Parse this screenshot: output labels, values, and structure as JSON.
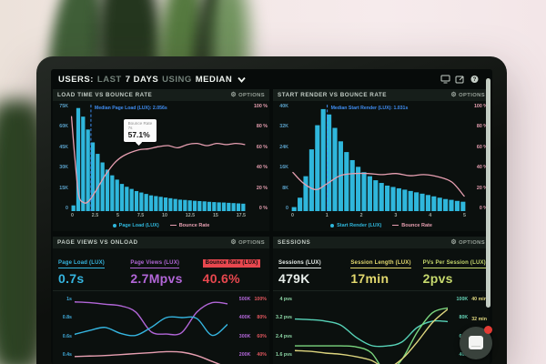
{
  "topbar": {
    "users": "USERS:",
    "last": "LAST",
    "days": "7 DAYS",
    "using": "USING",
    "median": "MEDIAN"
  },
  "labels": {
    "options": "OPTIONS"
  },
  "icons": {
    "gear": "⚙",
    "monitor": "monitor-icon",
    "share": "share-icon",
    "help": "help-icon",
    "chevron": "chevron-down-icon"
  },
  "colors": {
    "cyan": "#2fb7dc",
    "pink": "#e79fb1",
    "blue": "#3f8cf0",
    "purple": "#b266d8",
    "red": "#e8474e",
    "yellow": "#e3d96e",
    "lime": "#c6d96d",
    "teal": "#57d3b8",
    "green": "#7bd67f",
    "white": "#e8eeea"
  },
  "panels": {
    "load_time": {
      "title": "LOAD TIME VS BOUNCE RATE",
      "y_left": [
        "75K",
        "60K",
        "45K",
        "30K",
        "15K",
        "0"
      ],
      "y_right": [
        "100 %",
        "80 %",
        "60 %",
        "40 %",
        "20 %",
        "0 %"
      ],
      "x_ticks": [
        "0",
        "2.5",
        "5",
        "7.5",
        "10",
        "12.5",
        "15",
        "17.5"
      ],
      "legend": [
        "Page Load (LUX)",
        "Bounce Rate"
      ],
      "tooltip": {
        "title": "Bounce Rate",
        "x": "7s",
        "value": "57.1%"
      }
    },
    "start_render": {
      "title": "START RENDER VS BOUNCE RATE",
      "y_left": [
        "40K",
        "32K",
        "24K",
        "16K",
        "8K",
        "0"
      ],
      "y_right": [
        "100 %",
        "80 %",
        "60 %",
        "40 %",
        "20 %",
        "0 %"
      ],
      "x_ticks": [
        "0",
        "1",
        "2",
        "3",
        "4",
        "5"
      ],
      "legend": [
        "Start Render (LUX)",
        "Bounce Rate"
      ]
    },
    "page_views": {
      "title": "PAGE VIEWS VS ONLOAD",
      "metrics": [
        {
          "label": "Page Load (LUX)",
          "value": "0.7s",
          "color": "#35b5e0"
        },
        {
          "label": "Page Views (LUX)",
          "value": "2.7Mpvs",
          "color": "#b266d8"
        },
        {
          "label": "Bounce Rate (LUX)",
          "value": "40.6%",
          "color": "#e8474e",
          "highlight": true
        }
      ],
      "y_left": [
        "1s",
        "0.8s",
        "0.6s",
        "0.4s"
      ],
      "y_right_a": [
        "500K",
        "400K",
        "300K",
        "200K"
      ],
      "y_right_b": [
        "100%",
        "80%",
        "60%",
        "40%"
      ]
    },
    "sessions": {
      "title": "SESSIONS",
      "metrics": [
        {
          "label": "Sessions (LUX)",
          "value": "479K",
          "color": "#e8eeea"
        },
        {
          "label": "Session Length (LUX)",
          "value": "17min",
          "color": "#e3d96e"
        },
        {
          "label": "PVs Per Session (LUX)",
          "value": "2pvs",
          "color": "#c6d96d"
        }
      ],
      "y_left": [
        "4 pvs",
        "3.2 pvs",
        "2.4 pvs",
        "1.6 pvs"
      ],
      "y_right_a": [
        "100K",
        "80K",
        "60K",
        "40K"
      ],
      "y_right_b": [
        "40 min",
        "32 min",
        "24 min",
        ""
      ]
    }
  },
  "chart_data": [
    {
      "id": "load_time",
      "type": "bar",
      "title": "LOAD TIME VS BOUNCE RATE",
      "x_range": [
        0,
        18
      ],
      "bars": {
        "name": "Page Load (LUX)",
        "unit": "K",
        "color": "#2fb7dc",
        "range": [
          0,
          75
        ],
        "values": [
          4,
          72,
          66,
          57,
          48,
          40,
          34,
          29,
          25,
          22,
          19,
          17,
          15.5,
          14,
          13,
          12,
          11,
          10.5,
          10,
          9.5,
          9,
          8.5,
          8,
          7.8,
          7.5,
          7.2,
          7,
          6.8,
          6.5,
          6.3,
          6.1,
          6,
          5.8,
          5.6,
          5.4,
          5.2
        ]
      },
      "lines": [
        {
          "name": "Bounce Rate",
          "unit": "%",
          "color": "#e79fb1",
          "range": [
            0,
            100
          ],
          "width": 1.3,
          "x": [
            0.05,
            0.4,
            0.8,
            1.3,
            1.8,
            2.5,
            3.5,
            4.5,
            5.5,
            7,
            8,
            9,
            10,
            11,
            12,
            13,
            14,
            15,
            16,
            17,
            17.9
          ],
          "values": [
            88,
            50,
            15,
            8,
            9,
            18,
            33,
            45,
            52,
            57.1,
            58,
            60,
            61,
            59,
            62,
            63,
            61,
            63,
            62,
            63,
            62
          ]
        }
      ],
      "median": {
        "x": 2.056,
        "label": "Median Page Load (LUX): 2.056s",
        "color": "#3f8cf0"
      }
    },
    {
      "id": "start_render",
      "type": "bar",
      "title": "START RENDER VS BOUNCE RATE",
      "x_range": [
        0,
        5
      ],
      "bars": {
        "name": "Start Render (LUX)",
        "unit": "K",
        "color": "#2fb7dc",
        "range": [
          0,
          40
        ],
        "values": [
          1.5,
          5,
          13,
          23,
          32,
          38,
          36,
          31,
          26,
          22,
          19,
          16.5,
          14.5,
          13,
          11.5,
          10.5,
          9.5,
          9,
          8.5,
          8,
          7.5,
          7,
          6.5,
          6,
          5.5,
          5,
          4.5,
          4.2,
          3.8,
          3.5
        ]
      },
      "lines": [
        {
          "name": "Bounce Rate",
          "unit": "%",
          "color": "#e79fb1",
          "range": [
            0,
            100
          ],
          "width": 1.3,
          "x": [
            0.05,
            0.35,
            0.7,
            1.0,
            1.4,
            1.8,
            2.2,
            2.6,
            3.0,
            3.4,
            3.8,
            4.2,
            4.6,
            4.95
          ],
          "values": [
            36,
            26,
            20,
            25,
            33,
            35,
            35,
            34,
            35,
            33,
            34,
            32,
            27,
            14
          ]
        }
      ],
      "median": {
        "x": 1.031,
        "label": "Median Start Render (LUX): 1.031s",
        "color": "#3f8cf0"
      }
    },
    {
      "id": "pageviews_onload",
      "type": "line",
      "title": "PAGE VIEWS VS ONLOAD",
      "x_range": [
        0,
        10
      ],
      "lines": [
        {
          "name": "Page Views (LUX)",
          "unit": "K",
          "color": "#b266d8",
          "range": [
            165,
            518
          ],
          "width": 1.4,
          "values": [
            482,
            478,
            470,
            462,
            430,
            330,
            318,
            325,
            430,
            478,
            472
          ]
        },
        {
          "name": "Page Load (LUX)",
          "unit": "s",
          "color": "#35b5e0",
          "range": [
            0.33,
            1.03
          ],
          "width": 1.4,
          "values": [
            0.63,
            0.67,
            0.7,
            0.64,
            0.62,
            0.7,
            0.8,
            0.8,
            0.79,
            0.62,
            0.73
          ]
        },
        {
          "name": "Bounce Rate (LUX)",
          "unit": "%",
          "color": "#e79fb1",
          "range": [
            32.4,
            103
          ],
          "width": 1.4,
          "values": [
            40,
            40.5,
            41,
            42,
            43,
            44,
            45,
            44.5,
            41,
            35,
            29
          ]
        }
      ]
    },
    {
      "id": "sessions",
      "type": "line",
      "title": "SESSIONS",
      "x_range": [
        0,
        10
      ],
      "lines": [
        {
          "name": "PVs Per Session (LUX)",
          "unit": "pvs",
          "color": "#57d3b8",
          "range": [
            1.3,
            4.14
          ],
          "width": 1.4,
          "values": [
            3.15,
            3.12,
            3.06,
            2.9,
            2.4,
            2.06,
            2.04,
            2.2,
            2.8,
            3.06,
            3.04
          ]
        },
        {
          "name": "Sessions (LUX)",
          "unit": "K",
          "color": "#7bd67f",
          "range": [
            32.4,
            103.4
          ],
          "width": 1.4,
          "values": [
            51,
            51,
            51,
            51,
            50,
            44,
            24,
            37,
            65,
            85,
            90
          ]
        },
        {
          "name": "Session Length (LUX)",
          "unit": "min",
          "color": "#ddd57e",
          "range": [
            13.0,
            41.4
          ],
          "width": 1.4,
          "values": [
            18.5,
            18.2,
            17.5,
            17,
            16,
            14.5,
            11.5,
            15,
            22,
            30,
            35.5
          ]
        }
      ]
    }
  ]
}
